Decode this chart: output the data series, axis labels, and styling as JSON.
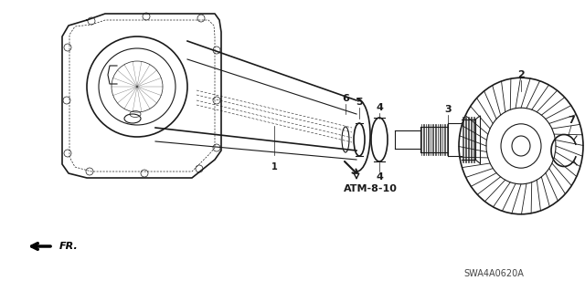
{
  "background_color": "#ffffff",
  "line_color": "#1a1a1a",
  "label_color": "#000000",
  "fig_width": 6.4,
  "fig_height": 3.19,
  "dpi": 100,
  "atm_label": "ATM-8-10",
  "fr_label": "FR.",
  "watermark": "SWA4A0620A"
}
